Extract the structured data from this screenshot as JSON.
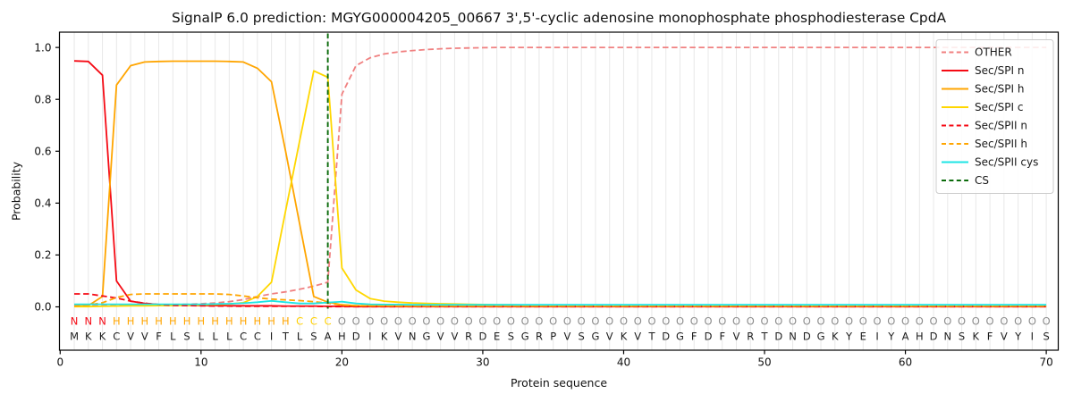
{
  "chart_data": {
    "type": "line",
    "title": "SignalP 6.0 prediction: MGYG000004205_00667 3',5'-cyclic adenosine monophosphate phosphodiesterase CpdA",
    "xlabel": "Protein sequence",
    "ylabel": "Probability",
    "x_ticks": [
      0,
      10,
      20,
      30,
      40,
      50,
      60,
      70
    ],
    "y_ticks": [
      0.0,
      0.2,
      0.4,
      0.6,
      0.8,
      1.0
    ],
    "x_start": 1,
    "xlim": [
      -0.05,
      70.85
    ],
    "ylim": [
      -0.167,
      1.059
    ],
    "grid": "vertical line per residue, no horizontal grid",
    "legend_position": "upper-right",
    "series": [
      {
        "name": "OTHER",
        "color": "#f08080",
        "style": "dashed",
        "values": [
          0.005,
          0.005,
          0.005,
          0.005,
          0.006,
          0.007,
          0.008,
          0.009,
          0.01,
          0.012,
          0.015,
          0.02,
          0.028,
          0.04,
          0.05,
          0.058,
          0.068,
          0.08,
          0.095,
          0.82,
          0.93,
          0.96,
          0.975,
          0.983,
          0.988,
          0.992,
          0.995,
          0.997,
          0.998,
          0.999,
          1.0,
          1.0,
          1.0,
          1.0,
          1.0,
          1.0,
          1.0,
          1.0,
          1.0,
          1.0,
          1.0,
          1.0,
          1.0,
          1.0,
          1.0,
          1.0,
          1.0,
          1.0,
          1.0,
          1.0,
          1.0,
          1.0,
          1.0,
          1.0,
          1.0,
          1.0,
          1.0,
          1.0,
          1.0,
          1.0,
          1.0,
          1.0,
          1.0,
          1.0,
          1.0,
          1.0,
          1.0,
          1.0,
          1.0,
          1.0
        ]
      },
      {
        "name": "Sec/SPI n",
        "color": "#f50a14",
        "style": "solid",
        "values": [
          0.948,
          0.946,
          0.893,
          0.1,
          0.022,
          0.013,
          0.009,
          0.007,
          0.006,
          0.005,
          0.005,
          0.004,
          0.004,
          0.004,
          0.004,
          0.003,
          0.003,
          0.003,
          0.002,
          0.002,
          0.001,
          0.001,
          0.001,
          0.001,
          0.001,
          0.001,
          0.001,
          0.001,
          0.001,
          0.001,
          0.001,
          0.001,
          0.001,
          0.001,
          0.001,
          0.001,
          0.001,
          0.001,
          0.001,
          0.001,
          0.001,
          0.001,
          0.001,
          0.001,
          0.001,
          0.001,
          0.001,
          0.001,
          0.001,
          0.001,
          0.001,
          0.001,
          0.001,
          0.001,
          0.001,
          0.001,
          0.001,
          0.001,
          0.001,
          0.001,
          0.001,
          0.001,
          0.001,
          0.001,
          0.001,
          0.001,
          0.001,
          0.001,
          0.001,
          0.001
        ]
      },
      {
        "name": "Sec/SPI h",
        "color": "#ffa500",
        "style": "solid",
        "values": [
          0.002,
          0.005,
          0.04,
          0.855,
          0.93,
          0.944,
          0.946,
          0.947,
          0.947,
          0.947,
          0.947,
          0.946,
          0.944,
          0.92,
          0.868,
          0.6,
          0.32,
          0.04,
          0.018,
          0.008,
          0.005,
          0.004,
          0.004,
          0.003,
          0.003,
          0.003,
          0.003,
          0.003,
          0.003,
          0.003,
          0.003,
          0.003,
          0.003,
          0.003,
          0.003,
          0.003,
          0.003,
          0.003,
          0.003,
          0.003,
          0.003,
          0.003,
          0.003,
          0.003,
          0.003,
          0.003,
          0.003,
          0.003,
          0.003,
          0.003,
          0.003,
          0.003,
          0.003,
          0.003,
          0.003,
          0.003,
          0.003,
          0.003,
          0.003,
          0.003,
          0.003,
          0.003,
          0.003,
          0.003,
          0.003,
          0.003,
          0.003,
          0.003,
          0.003,
          0.003
        ]
      },
      {
        "name": "Sec/SPI c",
        "color": "#ffd700",
        "style": "solid",
        "values": [
          0.001,
          0.001,
          0.002,
          0.003,
          0.004,
          0.004,
          0.005,
          0.005,
          0.006,
          0.007,
          0.009,
          0.011,
          0.016,
          0.04,
          0.095,
          0.37,
          0.64,
          0.91,
          0.885,
          0.15,
          0.065,
          0.032,
          0.022,
          0.018,
          0.015,
          0.013,
          0.012,
          0.011,
          0.01,
          0.009,
          0.008,
          0.008,
          0.007,
          0.007,
          0.006,
          0.006,
          0.006,
          0.005,
          0.005,
          0.005,
          0.004,
          0.004,
          0.004,
          0.004,
          0.004,
          0.004,
          0.004,
          0.004,
          0.004,
          0.004,
          0.004,
          0.004,
          0.004,
          0.004,
          0.004,
          0.004,
          0.004,
          0.004,
          0.004,
          0.004,
          0.004,
          0.004,
          0.004,
          0.004,
          0.004,
          0.004,
          0.004,
          0.004,
          0.004,
          0.004
        ]
      },
      {
        "name": "Sec/SPII n",
        "color": "#f50a14",
        "style": "dashed",
        "values": [
          0.05,
          0.05,
          0.042,
          0.034,
          0.022,
          0.014,
          0.009,
          0.006,
          0.005,
          0.004,
          0.003,
          0.003,
          0.002,
          0.002,
          0.002,
          0.002,
          0.002,
          0.002,
          0.001,
          0.001,
          0.001,
          0.001,
          0.001,
          0.001,
          0.001,
          0.001,
          0.001,
          0.001,
          0.001,
          0.001,
          0.001,
          0.001,
          0.001,
          0.001,
          0.001,
          0.001,
          0.001,
          0.001,
          0.001,
          0.001,
          0.001,
          0.001,
          0.001,
          0.001,
          0.001,
          0.001,
          0.001,
          0.001,
          0.001,
          0.001,
          0.001,
          0.001,
          0.001,
          0.001,
          0.001,
          0.001,
          0.001,
          0.001,
          0.001,
          0.001,
          0.001,
          0.001,
          0.001,
          0.001,
          0.001,
          0.001,
          0.001,
          0.001,
          0.001,
          0.001
        ]
      },
      {
        "name": "Sec/SPII h",
        "color": "#ffa500",
        "style": "dashed",
        "values": [
          0.003,
          0.007,
          0.016,
          0.036,
          0.048,
          0.05,
          0.05,
          0.05,
          0.05,
          0.05,
          0.05,
          0.048,
          0.042,
          0.035,
          0.03,
          0.027,
          0.024,
          0.02,
          0.014,
          0.007,
          0.005,
          0.004,
          0.004,
          0.003,
          0.003,
          0.003,
          0.003,
          0.003,
          0.003,
          0.003,
          0.003,
          0.003,
          0.003,
          0.003,
          0.003,
          0.003,
          0.003,
          0.003,
          0.003,
          0.003,
          0.003,
          0.003,
          0.003,
          0.003,
          0.003,
          0.003,
          0.003,
          0.003,
          0.003,
          0.003,
          0.003,
          0.003,
          0.003,
          0.003,
          0.003,
          0.003,
          0.003,
          0.003,
          0.003,
          0.003,
          0.003,
          0.003,
          0.003,
          0.003,
          0.003,
          0.003,
          0.003,
          0.003,
          0.003,
          0.003
        ]
      },
      {
        "name": "Sec/SPII cys",
        "color": "#1de5e5",
        "style": "solid",
        "values": [
          0.01,
          0.01,
          0.01,
          0.01,
          0.01,
          0.01,
          0.01,
          0.01,
          0.01,
          0.01,
          0.011,
          0.012,
          0.014,
          0.018,
          0.023,
          0.018,
          0.013,
          0.013,
          0.017,
          0.02,
          0.013,
          0.01,
          0.009,
          0.009,
          0.008,
          0.008,
          0.008,
          0.008,
          0.008,
          0.008,
          0.008,
          0.008,
          0.008,
          0.008,
          0.008,
          0.008,
          0.008,
          0.008,
          0.008,
          0.008,
          0.008,
          0.008,
          0.008,
          0.008,
          0.008,
          0.008,
          0.008,
          0.008,
          0.008,
          0.008,
          0.008,
          0.008,
          0.008,
          0.008,
          0.008,
          0.008,
          0.008,
          0.008,
          0.008,
          0.008,
          0.008,
          0.008,
          0.008,
          0.008,
          0.008,
          0.008,
          0.008,
          0.008,
          0.008,
          0.008
        ]
      }
    ],
    "cs_marker": {
      "label": "CS",
      "x": 19,
      "color": "#0b6b0b",
      "style": "dashed"
    },
    "sequence": "MKKCVVFLSLLLCCITLSAHDIKVNGVVRDESGRPVSGVKVTDGFDFVRTDNDGKYEIYAHDNSKFVYIS",
    "residue_annotation_regions": [
      {
        "label": "N",
        "start": 1,
        "end": 3,
        "color": "#f50a14"
      },
      {
        "label": "H",
        "start": 4,
        "end": 16,
        "color": "#ffa500"
      },
      {
        "label": "C",
        "start": 17,
        "end": 19,
        "color": "#ffd000"
      },
      {
        "label": "O",
        "start": 20,
        "end": 70,
        "color": "#8c8c8c"
      }
    ]
  }
}
